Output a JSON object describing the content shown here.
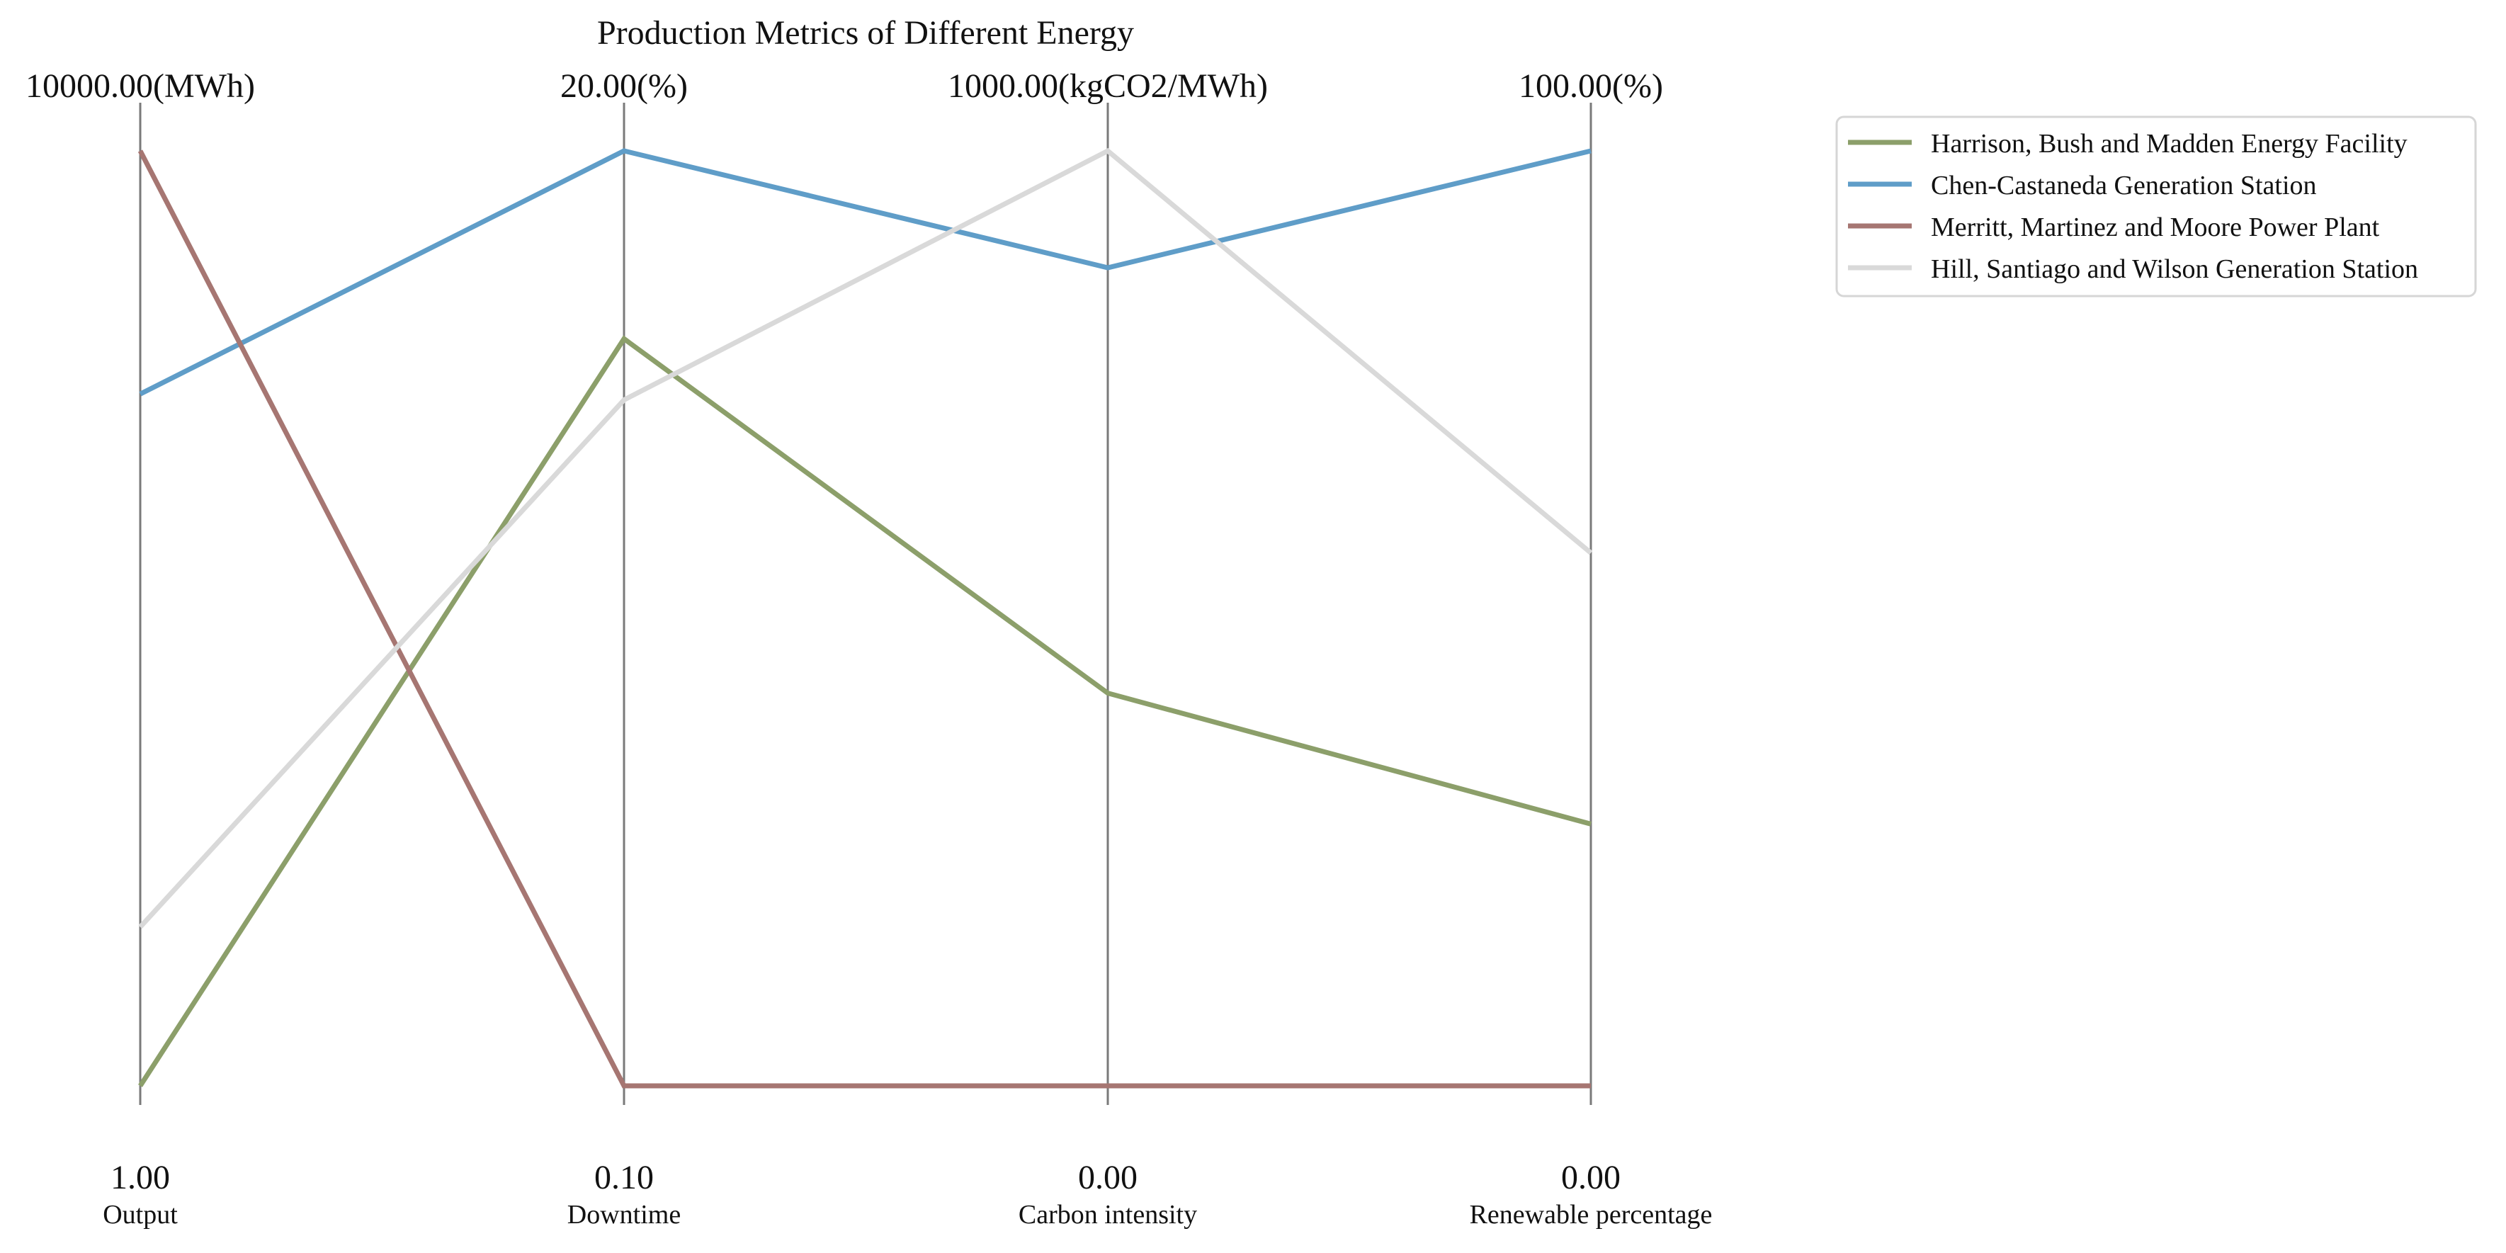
{
  "chart_data": {
    "type": "parallel-coordinates",
    "title": "Production Metrics of Different Energy",
    "axes": [
      {
        "name": "Output",
        "min_label": "1.00",
        "max_label": "10000.00(MWh)",
        "min": 1,
        "max": 10000,
        "unit": "MWh"
      },
      {
        "name": "Downtime",
        "min_label": "0.10",
        "max_label": "20.00(%)",
        "min": 0.1,
        "max": 20,
        "unit": "%"
      },
      {
        "name": "Carbon intensity",
        "min_label": "0.00",
        "max_label": "1000.00(kgCO2/MWh)",
        "min": 0,
        "max": 1000,
        "unit": "kgCO2/MWh"
      },
      {
        "name": "Renewable percentage",
        "min_label": "0.00",
        "max_label": "100.00(%)",
        "min": 0,
        "max": 100,
        "unit": "%"
      }
    ],
    "series": [
      {
        "name": "Harrison, Bush and Madden  Energy Facility",
        "color": "#8c9f6a",
        "values": [
          1,
          16.0,
          420,
          28
        ]
      },
      {
        "name": "Chen-Castaneda  Generation Station",
        "color": "#5f9dc8",
        "values": [
          7400,
          20.0,
          875,
          100
        ]
      },
      {
        "name": "Merritt, Martinez and Moore  Power Plant",
        "color": "#a67672",
        "values": [
          10000,
          0.1,
          0,
          0
        ]
      },
      {
        "name": "Hill, Santiago and Wilson  Generation Station",
        "color": "#d9d9d9",
        "values": [
          1700,
          14.7,
          1000,
          57
        ]
      }
    ],
    "legend_position": "top-right",
    "grid": false
  }
}
